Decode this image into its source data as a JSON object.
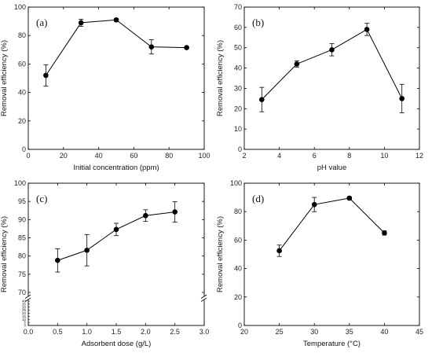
{
  "chart_data": [
    {
      "type": "line",
      "panel_label": "(a)",
      "xlabel": "Initial concentration (ppm)",
      "ylabel": "Removal efficiency (%)",
      "xlim": [
        0,
        100
      ],
      "ylim": [
        0,
        100
      ],
      "xticks": [
        0,
        20,
        40,
        60,
        80,
        100
      ],
      "yticks": [
        0,
        20,
        40,
        60,
        80,
        100
      ],
      "x": [
        10,
        30,
        50,
        70,
        90
      ],
      "y": [
        52,
        89,
        91,
        72,
        71.5
      ],
      "err": [
        7.5,
        2.5,
        1,
        5,
        0.5
      ],
      "grid": false,
      "color": "#000000"
    },
    {
      "type": "line",
      "panel_label": "(b)",
      "xlabel": "pH value",
      "ylabel": "Removal efficiency (%)",
      "xlim": [
        2,
        12
      ],
      "ylim": [
        0,
        70
      ],
      "xticks": [
        2,
        4,
        6,
        8,
        10,
        12
      ],
      "yticks": [
        0,
        10,
        20,
        30,
        40,
        50,
        60,
        70
      ],
      "x": [
        3,
        5,
        7,
        9,
        11
      ],
      "y": [
        24.5,
        42,
        49,
        59,
        25
      ],
      "err": [
        6,
        1.5,
        3,
        3,
        7
      ],
      "grid": false,
      "color": "#000000"
    },
    {
      "type": "line",
      "panel_label": "(c)",
      "xlabel": "Adsorbent dose (g/L)",
      "ylabel": "Removal efficiency (%)",
      "xlim": [
        0,
        3.0
      ],
      "ylim": [
        70,
        100
      ],
      "xticks": [
        "0.0",
        "0.5",
        "1.0",
        "1.5",
        "2.0",
        "2.5",
        "3.0"
      ],
      "yticks": [
        70,
        75,
        80,
        85,
        90,
        95,
        100
      ],
      "lower_yticks": [
        0,
        5,
        10,
        15,
        20,
        25,
        30,
        35,
        40
      ],
      "axis_break": true,
      "x": [
        0.5,
        1.0,
        1.5,
        2.0,
        2.5
      ],
      "y": [
        78.8,
        81.6,
        87.3,
        91.1,
        92.1
      ],
      "err": [
        3.2,
        4.3,
        1.7,
        1.6,
        2.8
      ],
      "grid": false,
      "color": "#000000"
    },
    {
      "type": "line",
      "panel_label": "(d)",
      "xlabel": "Temperature (°C)",
      "ylabel": "Removal efficiency (%)",
      "xlim": [
        20,
        45
      ],
      "ylim": [
        0,
        100
      ],
      "xticks": [
        20,
        25,
        30,
        35,
        40,
        45
      ],
      "yticks": [
        0,
        20,
        40,
        60,
        80,
        100
      ],
      "x": [
        25,
        30,
        35,
        40
      ],
      "y": [
        52.5,
        85,
        89.5,
        65
      ],
      "err": [
        4,
        5,
        1,
        1.5
      ],
      "grid": false,
      "color": "#000000"
    }
  ]
}
